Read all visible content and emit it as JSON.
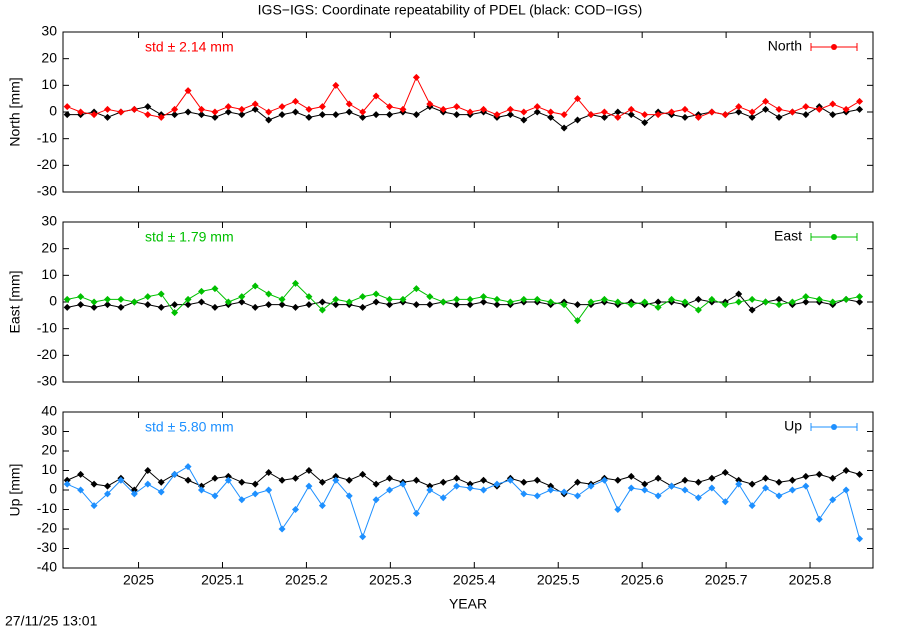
{
  "title": "IGS−IGS: Coordinate repeatability of PDEL (black: COD−IGS)",
  "timestamp": "27/11/25 13:01",
  "chart_data": [
    {
      "type": "line",
      "ylabel": "North [mm]",
      "annotation": "std ± 2.14 mm",
      "xlim": [
        2024.91,
        2025.875
      ],
      "xticks": [
        2025,
        2025.1,
        2025.2,
        2025.3,
        2025.4,
        2025.5,
        2025.6,
        2025.7,
        2025.8
      ],
      "ylim": [
        -30,
        30
      ],
      "yticks": [
        -30,
        -20,
        -10,
        0,
        10,
        20,
        30
      ],
      "x": [
        2024.915,
        2024.931,
        2024.947,
        2024.963,
        2024.979,
        2024.995,
        2025.011,
        2025.027,
        2025.043,
        2025.059,
        2025.075,
        2025.091,
        2025.107,
        2025.123,
        2025.139,
        2025.155,
        2025.171,
        2025.187,
        2025.203,
        2025.219,
        2025.235,
        2025.251,
        2025.267,
        2025.283,
        2025.299,
        2025.315,
        2025.331,
        2025.347,
        2025.363,
        2025.379,
        2025.395,
        2025.411,
        2025.427,
        2025.443,
        2025.459,
        2025.475,
        2025.491,
        2025.507,
        2025.523,
        2025.539,
        2025.555,
        2025.571,
        2025.587,
        2025.603,
        2025.619,
        2025.635,
        2025.651,
        2025.667,
        2025.683,
        2025.699,
        2025.715,
        2025.731,
        2025.747,
        2025.763,
        2025.779,
        2025.795,
        2025.811,
        2025.827,
        2025.843,
        2025.859
      ],
      "series": [
        {
          "color": "#000000",
          "values": [
            -1,
            -1,
            0,
            -2,
            0,
            1,
            2,
            -1,
            -1,
            0,
            -1,
            -2,
            0,
            -1,
            1,
            -3,
            -1,
            0,
            -2,
            -1,
            -1,
            0,
            -2,
            -1,
            -1,
            0,
            -1,
            2,
            0,
            -1,
            -1,
            0,
            -2,
            -1,
            -3,
            0,
            -2,
            -6,
            -3,
            -1,
            -2,
            0,
            -1,
            -4,
            0,
            -1,
            -2,
            -1,
            0,
            -1,
            0,
            -2,
            1,
            -2,
            0,
            -1,
            2,
            -1,
            0,
            1
          ]
        },
        {
          "name": "North",
          "color": "#ff0000",
          "values": [
            2,
            0,
            -1,
            1,
            0,
            1,
            -1,
            -2,
            1,
            8,
            1,
            0,
            2,
            1,
            3,
            0,
            2,
            4,
            1,
            2,
            10,
            3,
            0,
            6,
            2,
            1,
            13,
            3,
            1,
            2,
            0,
            1,
            -1,
            1,
            0,
            2,
            0,
            -1,
            5,
            -1,
            0,
            -2,
            1,
            -1,
            -1,
            0,
            1,
            -2,
            0,
            -1,
            2,
            0,
            4,
            1,
            0,
            2,
            1,
            3,
            1,
            4
          ]
        }
      ]
    },
    {
      "type": "line",
      "ylabel": "East [mm]",
      "annotation": "std ± 1.79 mm",
      "xlim": [
        2024.91,
        2025.875
      ],
      "xticks": [
        2025,
        2025.1,
        2025.2,
        2025.3,
        2025.4,
        2025.5,
        2025.6,
        2025.7,
        2025.8
      ],
      "ylim": [
        -30,
        30
      ],
      "yticks": [
        -30,
        -20,
        -10,
        0,
        10,
        20,
        30
      ],
      "x": [
        2024.915,
        2024.931,
        2024.947,
        2024.963,
        2024.979,
        2024.995,
        2025.011,
        2025.027,
        2025.043,
        2025.059,
        2025.075,
        2025.091,
        2025.107,
        2025.123,
        2025.139,
        2025.155,
        2025.171,
        2025.187,
        2025.203,
        2025.219,
        2025.235,
        2025.251,
        2025.267,
        2025.283,
        2025.299,
        2025.315,
        2025.331,
        2025.347,
        2025.363,
        2025.379,
        2025.395,
        2025.411,
        2025.427,
        2025.443,
        2025.459,
        2025.475,
        2025.491,
        2025.507,
        2025.523,
        2025.539,
        2025.555,
        2025.571,
        2025.587,
        2025.603,
        2025.619,
        2025.635,
        2025.651,
        2025.667,
        2025.683,
        2025.699,
        2025.715,
        2025.731,
        2025.747,
        2025.763,
        2025.779,
        2025.795,
        2025.811,
        2025.827,
        2025.843,
        2025.859
      ],
      "series": [
        {
          "color": "#000000",
          "values": [
            -2,
            -1,
            -2,
            -1,
            -2,
            0,
            -1,
            -2,
            -1,
            -1,
            0,
            -2,
            -1,
            0,
            -2,
            -1,
            -1,
            -2,
            -1,
            0,
            -1,
            -1,
            -2,
            0,
            -1,
            0,
            -1,
            -1,
            0,
            -1,
            -1,
            0,
            -1,
            -1,
            0,
            0,
            -1,
            0,
            -1,
            -1,
            0,
            -1,
            0,
            -1,
            0,
            0,
            -1,
            1,
            0,
            0,
            3,
            -3,
            0,
            1,
            -1,
            0,
            0,
            -1,
            1,
            0
          ]
        },
        {
          "name": "East",
          "color": "#00c000",
          "values": [
            1,
            2,
            0,
            1,
            1,
            0,
            2,
            3,
            -4,
            1,
            4,
            5,
            0,
            2,
            6,
            3,
            1,
            7,
            2,
            -3,
            1,
            0,
            2,
            3,
            1,
            1,
            5,
            2,
            0,
            1,
            1,
            2,
            1,
            0,
            1,
            1,
            0,
            -1,
            -7,
            0,
            1,
            0,
            -1,
            0,
            -2,
            1,
            0,
            -3,
            1,
            -1,
            0,
            1,
            0,
            -1,
            0,
            2,
            1,
            0,
            1,
            2
          ]
        }
      ]
    },
    {
      "type": "line",
      "ylabel": "Up [mm]",
      "annotation": "std ± 5.80 mm",
      "xlabel": "YEAR",
      "xlim": [
        2024.91,
        2025.875
      ],
      "xticks": [
        2025,
        2025.1,
        2025.2,
        2025.3,
        2025.4,
        2025.5,
        2025.6,
        2025.7,
        2025.8
      ],
      "ylim": [
        -40,
        40
      ],
      "yticks": [
        -40,
        -30,
        -20,
        -10,
        0,
        10,
        20,
        30,
        40
      ],
      "x": [
        2024.915,
        2024.931,
        2024.947,
        2024.963,
        2024.979,
        2024.995,
        2025.011,
        2025.027,
        2025.043,
        2025.059,
        2025.075,
        2025.091,
        2025.107,
        2025.123,
        2025.139,
        2025.155,
        2025.171,
        2025.187,
        2025.203,
        2025.219,
        2025.235,
        2025.251,
        2025.267,
        2025.283,
        2025.299,
        2025.315,
        2025.331,
        2025.347,
        2025.363,
        2025.379,
        2025.395,
        2025.411,
        2025.427,
        2025.443,
        2025.459,
        2025.475,
        2025.491,
        2025.507,
        2025.523,
        2025.539,
        2025.555,
        2025.571,
        2025.587,
        2025.603,
        2025.619,
        2025.635,
        2025.651,
        2025.667,
        2025.683,
        2025.699,
        2025.715,
        2025.731,
        2025.747,
        2025.763,
        2025.779,
        2025.795,
        2025.811,
        2025.827,
        2025.843,
        2025.859
      ],
      "series": [
        {
          "color": "#000000",
          "values": [
            5,
            8,
            3,
            2,
            6,
            0,
            10,
            4,
            8,
            5,
            2,
            6,
            7,
            4,
            3,
            9,
            5,
            6,
            10,
            4,
            7,
            5,
            8,
            3,
            6,
            4,
            5,
            2,
            4,
            6,
            3,
            5,
            2,
            6,
            4,
            5,
            2,
            -2,
            4,
            3,
            6,
            5,
            7,
            3,
            6,
            2,
            5,
            4,
            6,
            9,
            5,
            3,
            6,
            4,
            5,
            7,
            8,
            6,
            10,
            8
          ]
        },
        {
          "name": "Up",
          "color": "#1e90ff",
          "values": [
            3,
            0,
            -8,
            -2,
            5,
            -2,
            3,
            -1,
            8,
            12,
            0,
            -3,
            5,
            -5,
            -2,
            0,
            -20,
            -10,
            2,
            -8,
            5,
            -3,
            -24,
            -5,
            0,
            3,
            -12,
            0,
            -4,
            2,
            1,
            0,
            3,
            5,
            -2,
            -3,
            0,
            -1,
            -3,
            2,
            5,
            -10,
            1,
            0,
            -3,
            2,
            0,
            -4,
            1,
            -6,
            3,
            -8,
            1,
            -3,
            0,
            2,
            -15,
            -5,
            0,
            -25
          ]
        }
      ]
    }
  ]
}
